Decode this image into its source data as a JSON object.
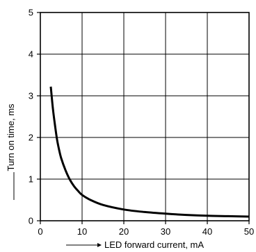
{
  "chart_data": {
    "type": "line",
    "title": "",
    "xlabel": "LED forward current, mA",
    "ylabel": "Turn on time, ms",
    "xlim": [
      0,
      50
    ],
    "ylim": [
      0,
      5
    ],
    "xticks": [
      0,
      10,
      20,
      30,
      40,
      50
    ],
    "yticks": [
      0,
      1,
      2,
      3,
      4,
      5
    ],
    "grid": true,
    "legend": "none",
    "series": [
      {
        "color": "#000000",
        "x": [
          2.5,
          3,
          3.5,
          4,
          4.5,
          5,
          6,
          7,
          8,
          9,
          10,
          12,
          15,
          20,
          25,
          30,
          35,
          40,
          45,
          50
        ],
        "y": [
          3.22,
          2.7,
          2.3,
          1.95,
          1.7,
          1.5,
          1.22,
          1.0,
          0.84,
          0.72,
          0.62,
          0.5,
          0.38,
          0.27,
          0.21,
          0.17,
          0.14,
          0.12,
          0.11,
          0.1
        ]
      }
    ]
  }
}
